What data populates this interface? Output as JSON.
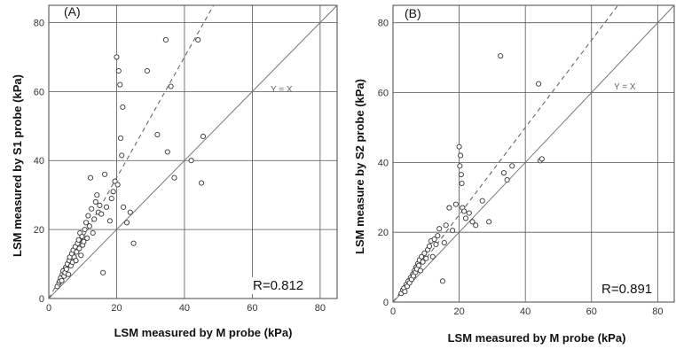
{
  "chart_data": [
    {
      "type": "scatter",
      "panel_label": "(A)",
      "xlabel": "LSM measured by M probe (kPa)",
      "ylabel": "LSM measured by S1 probe (kPa)",
      "xlim": [
        0,
        85
      ],
      "ylim": [
        0,
        85
      ],
      "xticks": [
        0,
        20,
        40,
        60,
        80
      ],
      "yticks": [
        0,
        20,
        40,
        60,
        80
      ],
      "grid": true,
      "identity_line_label": "Y = X",
      "regression_line": {
        "style": "dashed",
        "slope": 1.75,
        "intercept": 0
      },
      "r_label": "R=0.812",
      "points": [
        [
          2.5,
          3.5
        ],
        [
          3,
          4.5
        ],
        [
          3.2,
          5
        ],
        [
          3.5,
          6
        ],
        [
          3.8,
          5.2
        ],
        [
          4,
          7
        ],
        [
          4.2,
          8
        ],
        [
          4.5,
          6.5
        ],
        [
          4.8,
          7.5
        ],
        [
          5,
          9
        ],
        [
          5.2,
          8.5
        ],
        [
          5.5,
          10
        ],
        [
          5.8,
          7
        ],
        [
          6,
          11
        ],
        [
          6.2,
          12
        ],
        [
          6.5,
          9.5
        ],
        [
          6.8,
          13
        ],
        [
          7,
          10.5
        ],
        [
          7.2,
          14
        ],
        [
          7.5,
          12
        ],
        [
          7.8,
          15
        ],
        [
          8,
          11
        ],
        [
          8.2,
          13.5
        ],
        [
          8.5,
          16
        ],
        [
          8.8,
          17
        ],
        [
          9,
          14.5
        ],
        [
          9.2,
          19
        ],
        [
          9.5,
          12.5
        ],
        [
          9.8,
          18
        ],
        [
          10,
          15.5
        ],
        [
          10.3,
          16.5
        ],
        [
          10.6,
          20
        ],
        [
          11,
          22
        ],
        [
          11.3,
          17.5
        ],
        [
          11.6,
          24
        ],
        [
          12,
          21
        ],
        [
          12.3,
          35
        ],
        [
          12.6,
          26
        ],
        [
          13,
          19
        ],
        [
          13.4,
          23
        ],
        [
          13.8,
          28
        ],
        [
          14.2,
          30
        ],
        [
          14.6,
          25
        ],
        [
          15,
          27
        ],
        [
          15.5,
          24.5
        ],
        [
          16,
          7.5
        ],
        [
          16.5,
          36
        ],
        [
          17,
          26.5
        ],
        [
          18,
          22.5
        ],
        [
          18.5,
          29
        ],
        [
          19,
          31
        ],
        [
          19.5,
          34
        ],
        [
          20,
          70
        ],
        [
          20.3,
          33
        ],
        [
          20.6,
          66
        ],
        [
          21,
          62
        ],
        [
          21.2,
          46.5
        ],
        [
          21.5,
          41.5
        ],
        [
          21.8,
          55.5
        ],
        [
          22,
          26.5
        ],
        [
          23,
          22
        ],
        [
          24,
          25
        ],
        [
          25,
          16
        ],
        [
          29,
          66
        ],
        [
          32,
          47.5
        ],
        [
          34.5,
          75
        ],
        [
          35,
          42.5
        ],
        [
          36,
          61.5
        ],
        [
          37,
          35
        ],
        [
          42,
          40
        ],
        [
          44,
          75
        ],
        [
          45,
          33.5
        ],
        [
          45.5,
          47
        ]
      ]
    },
    {
      "type": "scatter",
      "panel_label": "(B)",
      "xlabel": "LSM measured by M probe (kPa)",
      "ylabel": "LSM measure by S2 probe (kPa)",
      "xlim": [
        0,
        85
      ],
      "ylim": [
        0,
        85
      ],
      "xticks": [
        0,
        20,
        40,
        60,
        80
      ],
      "yticks": [
        0,
        20,
        40,
        60,
        80
      ],
      "grid": true,
      "identity_line_label": "Y = X",
      "regression_line": {
        "style": "dashed",
        "slope": 1.25,
        "intercept": 0
      },
      "r_label": "R=0.891",
      "points": [
        [
          2.5,
          2.5
        ],
        [
          3,
          3.5
        ],
        [
          3.3,
          4
        ],
        [
          3.6,
          3
        ],
        [
          4,
          5
        ],
        [
          4.3,
          4.5
        ],
        [
          4.6,
          6
        ],
        [
          5,
          5.5
        ],
        [
          5.3,
          7
        ],
        [
          5.6,
          6.5
        ],
        [
          6,
          8
        ],
        [
          6.2,
          7.5
        ],
        [
          6.5,
          9
        ],
        [
          6.8,
          8.5
        ],
        [
          7,
          10
        ],
        [
          7.2,
          9.5
        ],
        [
          7.5,
          11
        ],
        [
          7.8,
          10.5
        ],
        [
          8,
          12
        ],
        [
          8.3,
          9
        ],
        [
          8.6,
          13
        ],
        [
          9,
          11.5
        ],
        [
          9.5,
          14
        ],
        [
          10,
          12.5
        ],
        [
          10.5,
          15
        ],
        [
          11,
          16
        ],
        [
          11.5,
          17.5
        ],
        [
          12,
          13
        ],
        [
          12.5,
          18
        ],
        [
          13,
          16.5
        ],
        [
          13.5,
          19
        ],
        [
          14,
          21
        ],
        [
          15,
          6
        ],
        [
          15.5,
          17
        ],
        [
          16,
          22
        ],
        [
          17,
          27
        ],
        [
          18,
          20.5
        ],
        [
          19,
          28
        ],
        [
          20,
          44.5
        ],
        [
          20.2,
          39
        ],
        [
          20.4,
          42
        ],
        [
          20.6,
          36.5
        ],
        [
          20.8,
          34
        ],
        [
          21,
          27
        ],
        [
          21.5,
          26
        ],
        [
          22,
          24
        ],
        [
          23,
          25.5
        ],
        [
          24,
          23
        ],
        [
          25,
          22
        ],
        [
          27,
          29
        ],
        [
          29,
          23
        ],
        [
          32.5,
          70.5
        ],
        [
          33.5,
          37
        ],
        [
          34.5,
          35
        ],
        [
          36,
          39
        ],
        [
          44,
          62.5
        ],
        [
          44.5,
          40.5
        ],
        [
          45,
          41
        ]
      ]
    }
  ]
}
